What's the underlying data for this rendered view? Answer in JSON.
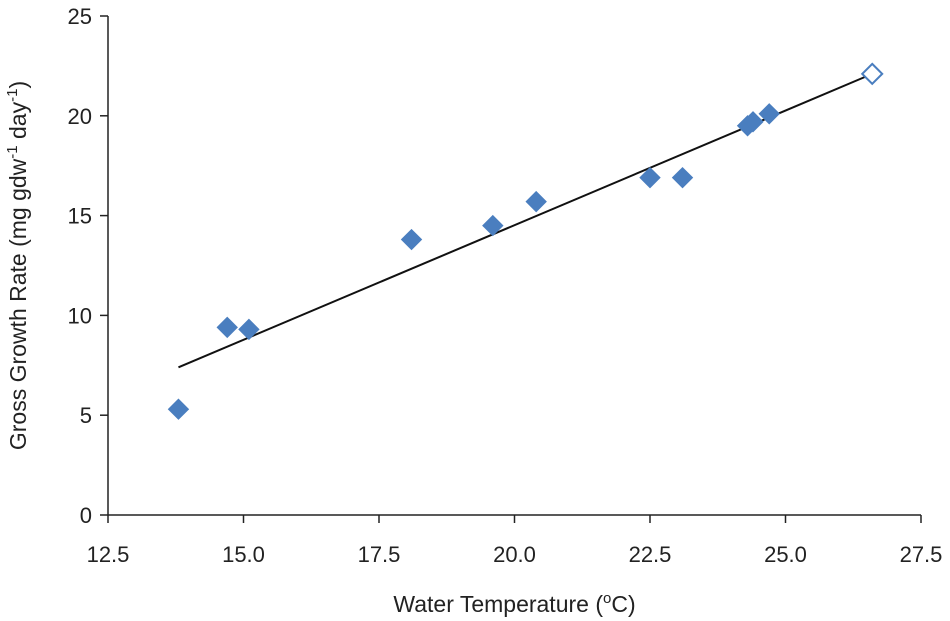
{
  "chart_data": {
    "type": "scatter",
    "title": "",
    "xlabel": {
      "main": "Water Temperature (",
      "sup": "o",
      "tail": "C)"
    },
    "ylabel": {
      "main": "Gross Growth Rate (mg gdw",
      "sup1": "-1",
      "mid": " day",
      "sup2": "-1",
      "tail": ")"
    },
    "xlim": [
      12.5,
      27.5
    ],
    "ylim": [
      0,
      25
    ],
    "x_ticks": [
      "12.5",
      "15.0",
      "17.5",
      "20.0",
      "22.5",
      "25.0",
      "27.5"
    ],
    "y_ticks": [
      "0",
      "5",
      "10",
      "15",
      "20",
      "25"
    ],
    "grid": false,
    "legend": "none",
    "series": [
      {
        "marker": "diamond-filled",
        "color": "#4a7ebf",
        "points": [
          {
            "x": 13.8,
            "y": 5.3
          },
          {
            "x": 14.7,
            "y": 9.4
          },
          {
            "x": 15.1,
            "y": 9.3
          },
          {
            "x": 18.1,
            "y": 13.8
          },
          {
            "x": 19.6,
            "y": 14.5
          },
          {
            "x": 20.4,
            "y": 15.7
          },
          {
            "x": 22.5,
            "y": 16.9
          },
          {
            "x": 23.1,
            "y": 16.9
          },
          {
            "x": 24.3,
            "y": 19.5
          },
          {
            "x": 24.4,
            "y": 19.7
          },
          {
            "x": 24.7,
            "y": 20.1
          }
        ]
      },
      {
        "marker": "diamond-open",
        "color": "#4a7ebf",
        "points": [
          {
            "x": 26.6,
            "y": 22.1
          }
        ]
      }
    ],
    "trendline": {
      "color": "#111111",
      "from": {
        "x": 13.8,
        "y": 7.4
      },
      "to": {
        "x": 26.6,
        "y": 22.1
      }
    }
  }
}
